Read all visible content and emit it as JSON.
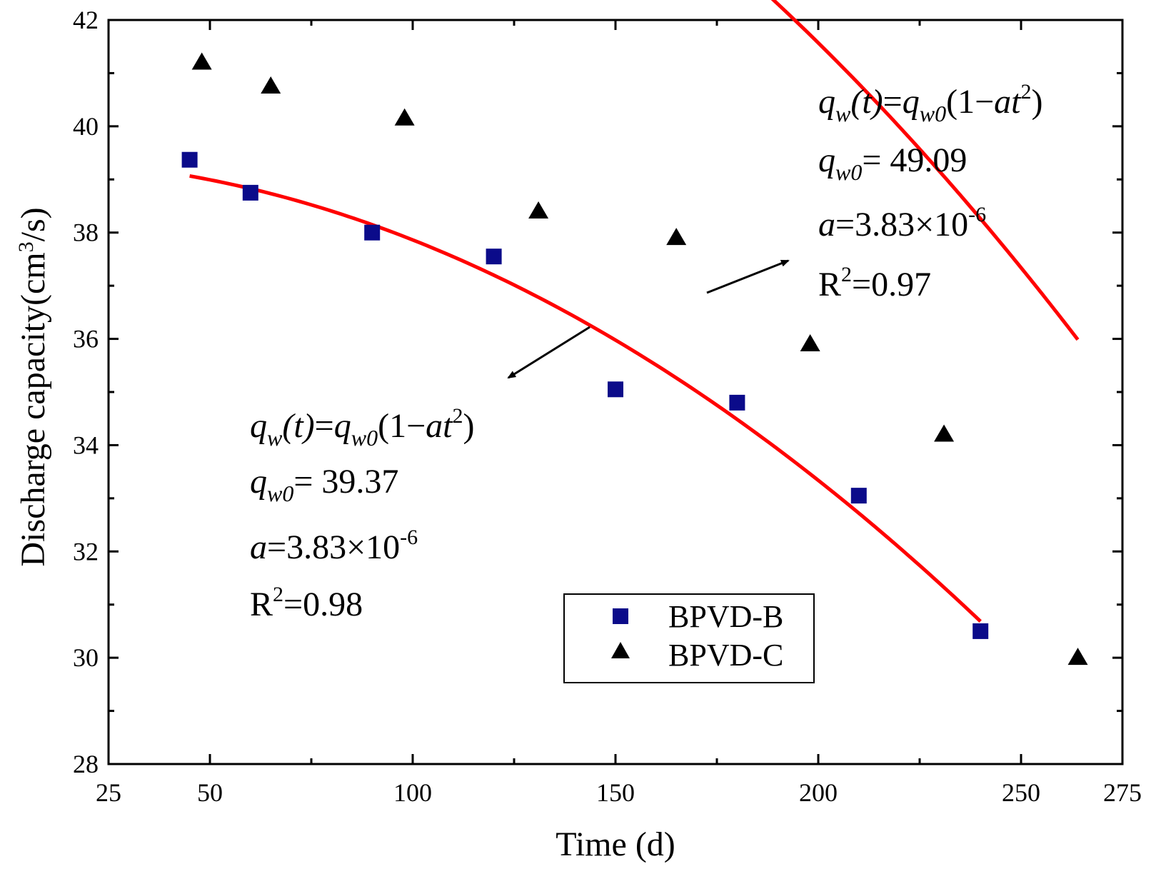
{
  "chart_data": {
    "type": "scatter",
    "xlabel": "Time (d)",
    "ylabel": "Discharge capacity(cm",
    "ylabel_sup": "3",
    "ylabel_tail": "/s)",
    "xlim": [
      25,
      275
    ],
    "ylim": [
      28,
      42
    ],
    "x_ticks": [
      25,
      50,
      100,
      150,
      200,
      250,
      275
    ],
    "x_tick_labels": [
      "25",
      "50",
      "100",
      "150",
      "200",
      "250",
      "275"
    ],
    "y_ticks": [
      28,
      30,
      32,
      34,
      36,
      38,
      40,
      42
    ],
    "y_tick_labels": [
      "28",
      "30",
      "32",
      "34",
      "36",
      "38",
      "40",
      "42"
    ],
    "grid": false,
    "legend_placement": "lower-right",
    "series": [
      {
        "name": "BPVD-B",
        "marker": "square",
        "color": "#0b0b8a",
        "x": [
          45,
          60,
          90,
          120,
          150,
          180,
          210,
          240
        ],
        "y": [
          39.37,
          38.75,
          38.0,
          37.55,
          35.05,
          34.8,
          33.05,
          30.5
        ],
        "fit": {
          "qw0": 39.37,
          "a": 3.83e-06,
          "x_range": [
            45,
            240
          ]
        }
      },
      {
        "name": "BPVD-C",
        "marker": "triangle",
        "color": "#000000",
        "x": [
          48,
          65,
          98,
          131,
          165,
          198,
          231,
          264
        ],
        "y": [
          41.2,
          40.75,
          40.15,
          38.4,
          37.9,
          35.9,
          34.2,
          30.0
        ],
        "fit": {
          "qw0": 49.09,
          "a": 3.83e-06,
          "x_range": [
            48,
            264
          ]
        }
      }
    ],
    "fit_color": "#ff0000",
    "annotations": [
      {
        "formula_q": "q",
        "formula_w": "w",
        "formula_t": "(t)",
        "formula_eq": "=",
        "formula_q2": "q",
        "formula_w0": "w0",
        "formula_open": "(1",
        "formula_minus": "−",
        "formula_at": "at",
        "formula_sup": "2",
        "formula_close": ")",
        "q0_q": "q",
        "q0_sub": "w0",
        "q0_val": "= 49.09",
        "a_sym": "a",
        "a_val": "=3.83×10",
        "a_exp": "-6",
        "r2_R": "R",
        "r2_sup": "2",
        "r2_val": "=0.97"
      },
      {
        "formula_q": "q",
        "formula_w": "w",
        "formula_t": "(t)",
        "formula_eq": "=",
        "formula_q2": "q",
        "formula_w0": "w0",
        "formula_open": "(1",
        "formula_minus": "−",
        "formula_at": "at",
        "formula_sup": "2",
        "formula_close": ")",
        "q0_q": "q",
        "q0_sub": "w0",
        "q0_val": "= 39.37",
        "a_sym": "a",
        "a_val": "=3.83×10",
        "a_exp": "-6",
        "r2_R": "R",
        "r2_sup": "2",
        "r2_val": "=0.98"
      }
    ]
  }
}
